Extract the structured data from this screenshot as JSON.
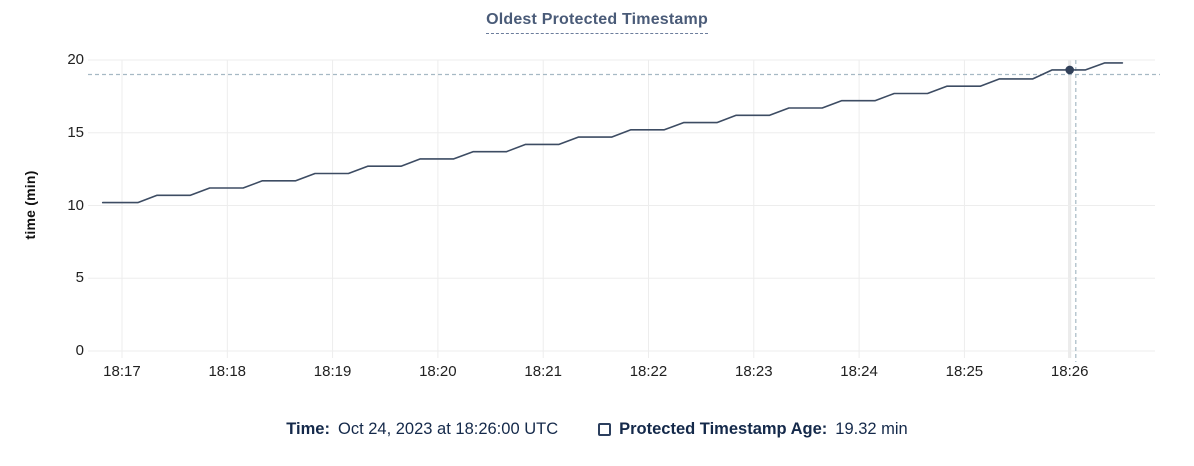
{
  "header": {
    "title": "Oldest Protected Timestamp"
  },
  "chart_data": {
    "type": "line",
    "title": "Oldest Protected Timestamp",
    "xlabel": "",
    "ylabel": "time (min)",
    "ylim": [
      0,
      20
    ],
    "yticks": [
      0,
      5,
      10,
      15,
      20
    ],
    "xlim_seconds": [
      -16.5,
      588.6
    ],
    "xticks": [
      {
        "t": 0,
        "label": "18:17"
      },
      {
        "t": 60,
        "label": "18:18"
      },
      {
        "t": 120,
        "label": "18:19"
      },
      {
        "t": 180,
        "label": "18:20"
      },
      {
        "t": 240,
        "label": "18:21"
      },
      {
        "t": 300,
        "label": "18:22"
      },
      {
        "t": 360,
        "label": "18:23"
      },
      {
        "t": 420,
        "label": "18:24"
      },
      {
        "t": 480,
        "label": "18:25"
      },
      {
        "t": 540,
        "label": "18:26"
      }
    ],
    "grid": true,
    "legend_position": "bottom",
    "series": [
      {
        "name": "Protected Timestamp Age",
        "unit": "min",
        "color": "#3d4c63",
        "points": [
          [
            -11,
            10.2
          ],
          [
            9,
            10.2
          ],
          [
            20,
            10.7
          ],
          [
            39,
            10.7
          ],
          [
            50,
            11.2
          ],
          [
            69,
            11.2
          ],
          [
            80,
            11.7
          ],
          [
            99,
            11.7
          ],
          [
            110,
            12.2
          ],
          [
            129,
            12.2
          ],
          [
            140,
            12.7
          ],
          [
            159,
            12.7
          ],
          [
            170,
            13.2
          ],
          [
            189,
            13.2
          ],
          [
            200,
            13.7
          ],
          [
            219,
            13.7
          ],
          [
            230,
            14.2
          ],
          [
            249,
            14.2
          ],
          [
            260,
            14.7
          ],
          [
            279,
            14.7
          ],
          [
            290,
            15.2
          ],
          [
            309,
            15.2
          ],
          [
            320,
            15.7
          ],
          [
            339,
            15.7
          ],
          [
            350,
            16.2
          ],
          [
            369,
            16.2
          ],
          [
            380,
            16.7
          ],
          [
            399,
            16.7
          ],
          [
            410,
            17.2
          ],
          [
            429,
            17.2
          ],
          [
            440,
            17.7
          ],
          [
            459,
            17.7
          ],
          [
            470,
            18.2
          ],
          [
            489,
            18.2
          ],
          [
            500,
            18.7
          ],
          [
            519,
            18.7
          ],
          [
            530,
            19.32
          ],
          [
            549,
            19.32
          ],
          [
            560,
            19.8
          ],
          [
            570,
            19.8
          ]
        ]
      }
    ],
    "hover": {
      "point_t": 540,
      "point_value": 19.32,
      "cursor_t": 543.5,
      "cursor_value": 19.0,
      "highlight_tick_t": 540
    }
  },
  "legend": {
    "time_label": "Time:",
    "time_value": "Oct 24, 2023 at 18:26:00 UTC",
    "series_label": "Protected Timestamp Age:",
    "series_value": "19.32 min"
  },
  "colors": {
    "line": "#3d4c63",
    "marker": "#32415a",
    "grid": "#ededed",
    "grid_highlight": "#e7e7e7",
    "crosshair": "#a6b9c4",
    "title": "#4a5b78",
    "legend_text": "#14294a",
    "tick_text": "#212121"
  }
}
